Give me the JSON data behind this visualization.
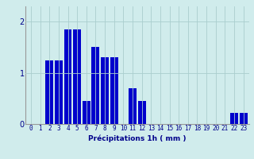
{
  "categories": [
    0,
    1,
    2,
    3,
    4,
    5,
    6,
    7,
    8,
    9,
    10,
    11,
    12,
    13,
    14,
    15,
    16,
    17,
    18,
    19,
    20,
    21,
    22,
    23
  ],
  "bar_heights": [
    0,
    0,
    1.25,
    1.25,
    1.85,
    1.85,
    0.45,
    1.5,
    1.3,
    1.3,
    0,
    0.7,
    0.45,
    0,
    0,
    0,
    0,
    0,
    0,
    0,
    0,
    0,
    0.22,
    0.22
  ],
  "xlabel": "Précipitations 1h ( mm )",
  "ylim": [
    0,
    2.3
  ],
  "yticks": [
    0,
    1,
    2
  ],
  "bar_color": "#0000cc",
  "bg_color": "#d0ecec",
  "grid_color": "#aacece",
  "tick_color": "#00008b",
  "label_color": "#00008b",
  "xlabel_fontsize": 6.5,
  "tick_fontsize": 5.5,
  "ytick_fontsize": 7.0
}
